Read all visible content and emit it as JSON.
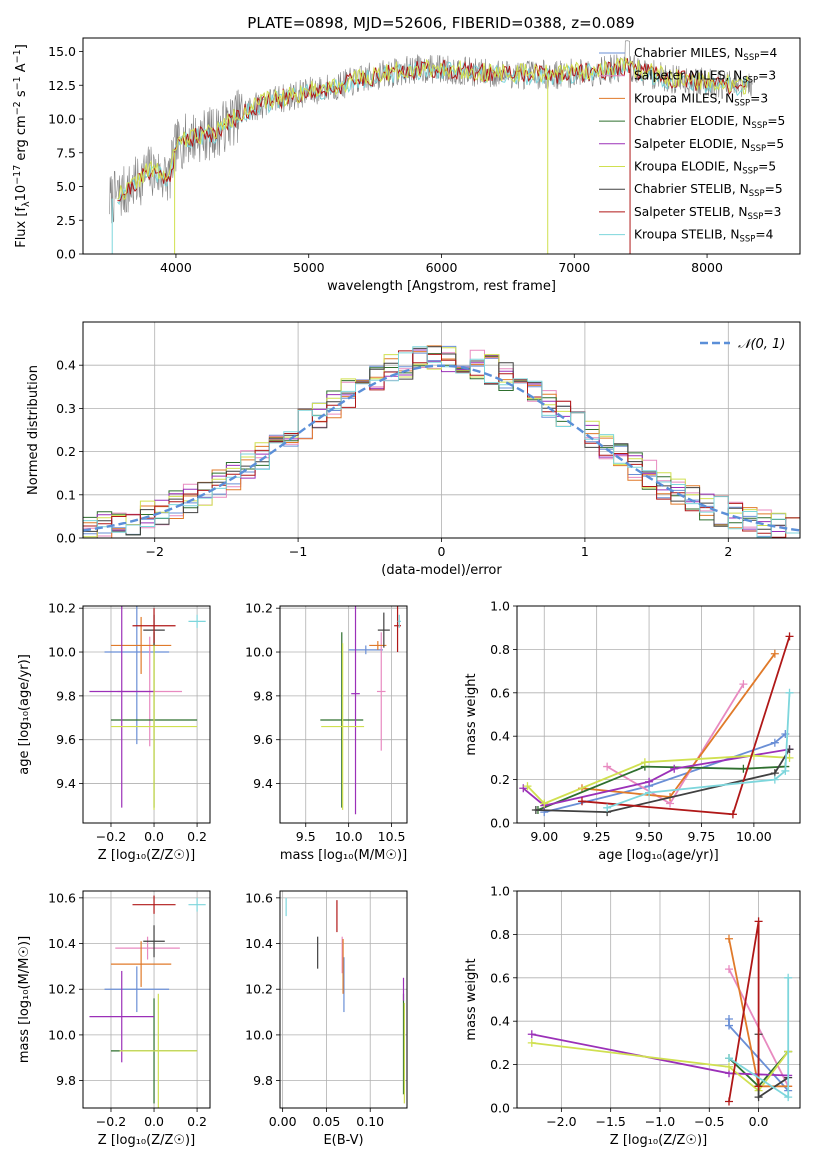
{
  "figure_title": "PLATE=0898, MJD=52606, FIBERID=0388, z=0.089",
  "colors": {
    "c_miles": "#6a8fd6",
    "s_miles": "#e88ac0",
    "k_miles": "#e07a2a",
    "c_elodie": "#2e6f2e",
    "s_elodie": "#9b30b8",
    "k_elodie": "#d0e050",
    "c_stelib": "#404040",
    "s_stelib": "#b01818",
    "k_stelib": "#7dd6dc",
    "gray": "#808080",
    "grid": "#b0b0b0",
    "normal_line": "#5b8fd8"
  },
  "legend_models": [
    {
      "label": "Chabrier MILES, N",
      "sub": "SSP",
      "suffix": "=4",
      "color": "#6a8fd6"
    },
    {
      "label": "Salpeter MILES, N",
      "sub": "SSP",
      "suffix": "=3",
      "color": "#e88ac0"
    },
    {
      "label": "Kroupa MILES, N",
      "sub": "SSP",
      "suffix": "=3",
      "color": "#e07a2a"
    },
    {
      "label": "Chabrier ELODIE, N",
      "sub": "SSP",
      "suffix": "=5",
      "color": "#2e6f2e"
    },
    {
      "label": "Salpeter ELODIE, N",
      "sub": "SSP",
      "suffix": "=5",
      "color": "#9b30b8"
    },
    {
      "label": "Kroupa ELODIE, N",
      "sub": "SSP",
      "suffix": "=5",
      "color": "#d0e050"
    },
    {
      "label": "Chabrier STELIB, N",
      "sub": "SSP",
      "suffix": "=5",
      "color": "#404040"
    },
    {
      "label": "Salpeter STELIB, N",
      "sub": "SSP",
      "suffix": "=3",
      "color": "#b01818"
    },
    {
      "label": "Kroupa STELIB, N",
      "sub": "SSP",
      "suffix": "=4",
      "color": "#7dd6dc"
    }
  ],
  "chart_data": [
    {
      "id": "spectrum",
      "type": "line",
      "xlabel": "wavelength [Angstrom, rest frame]",
      "ylabel_parts": [
        "Flux [f",
        "λ",
        "10",
        "−17",
        " erg cm",
        "−2",
        " s",
        "−1",
        " A",
        "−1",
        "]"
      ],
      "xlim": [
        3300,
        8700
      ],
      "ylim": [
        0,
        16
      ],
      "xticks": [
        4000,
        5000,
        6000,
        7000,
        8000
      ],
      "yticks": [
        0.0,
        2.5,
        5.0,
        7.5,
        10.0,
        12.5,
        15.0
      ],
      "yticklabels": [
        "0.0",
        "2.5",
        "5.0",
        "7.5",
        "10.0",
        "12.5",
        "15.0"
      ],
      "continuum": [
        [
          3500,
          4.0
        ],
        [
          3650,
          4.8
        ],
        [
          3800,
          6.2
        ],
        [
          3950,
          5.6
        ],
        [
          4000,
          8.0
        ],
        [
          4100,
          8.6
        ],
        [
          4300,
          9.0
        ],
        [
          4500,
          10.5
        ],
        [
          4700,
          11.3
        ],
        [
          5000,
          12.0
        ],
        [
          5200,
          12.4
        ],
        [
          5500,
          13.2
        ],
        [
          5800,
          13.7
        ],
        [
          6000,
          13.7
        ],
        [
          6300,
          13.4
        ],
        [
          6600,
          13.3
        ],
        [
          6900,
          13.3
        ],
        [
          7200,
          13.6
        ],
        [
          7400,
          13.8
        ],
        [
          7700,
          13.0
        ],
        [
          8100,
          12.6
        ],
        [
          8300,
          12.4
        ]
      ]
    },
    {
      "id": "residuals",
      "type": "histogram",
      "xlabel": "(data-model)/error",
      "ylabel": "Normed distribution",
      "xlim": [
        -2.5,
        2.5
      ],
      "ylim": [
        0,
        0.5
      ],
      "xticks": [
        -2,
        -1,
        0,
        1,
        2
      ],
      "xticklabels": [
        "−2",
        "−1",
        "0",
        "1",
        "2"
      ],
      "yticks": [
        0.0,
        0.1,
        0.2,
        0.3,
        0.4
      ],
      "yticklabels": [
        "0.0",
        "0.1",
        "0.2",
        "0.3",
        "0.4"
      ],
      "bin_width": 0.1,
      "legend": "𝒩(0, 1)",
      "normal": {
        "mean": 0,
        "sigma": 1
      }
    },
    {
      "id": "age_vs_Z",
      "type": "errorbar",
      "xlabel": "Z [log₁₀(Z/Z☉)]",
      "ylabel": "age  [log₁₀(age/yr)]",
      "xlim": [
        -0.33,
        0.26
      ],
      "ylim": [
        9.22,
        10.21
      ],
      "xticks": [
        -0.2,
        0.0,
        0.2
      ],
      "xticklabels": [
        "−0.2",
        "0.0",
        "0.2"
      ],
      "yticks": [
        9.4,
        9.6,
        9.8,
        10.0,
        10.2
      ],
      "yticklabels": [
        "9.4",
        "9.6",
        "9.8",
        "10.0",
        "10.2"
      ],
      "points": [
        {
          "key": "c_miles",
          "x": -0.08,
          "xerr": 0.15,
          "y": 10.0,
          "yerr": 0.42
        },
        {
          "key": "s_miles",
          "x": -0.02,
          "xerr": 0.15,
          "y": 9.82,
          "yerr": 0.25
        },
        {
          "key": "k_miles",
          "x": -0.06,
          "xerr": 0.14,
          "y": 10.03,
          "yerr": 0.13
        },
        {
          "key": "c_elodie",
          "x": 0.0,
          "xerr": 0.2,
          "y": 9.69,
          "yerr": 0.4
        },
        {
          "key": "s_elodie",
          "x": -0.15,
          "xerr": 0.15,
          "y": 9.82,
          "yerr": 0.53
        },
        {
          "key": "k_elodie",
          "x": 0.0,
          "xerr": 0.2,
          "y": 9.66,
          "yerr": 0.38
        },
        {
          "key": "c_stelib",
          "x": 0.0,
          "xerr": 0.05,
          "y": 10.1,
          "yerr": 0.07
        },
        {
          "key": "s_stelib",
          "x": 0.0,
          "xerr": 0.1,
          "y": 10.12,
          "yerr": 0.08
        },
        {
          "key": "k_stelib",
          "x": 0.2,
          "xerr": 0.04,
          "y": 10.14,
          "yerr": 0.03
        }
      ]
    },
    {
      "id": "age_vs_mass",
      "type": "errorbar",
      "xlabel": "mass [log₁₀(M/M☉)]",
      "ylabel": "",
      "xlim": [
        9.2,
        10.68
      ],
      "ylim": [
        9.22,
        10.21
      ],
      "xticks": [
        9.5,
        10.0,
        10.5
      ],
      "xticklabels": [
        "9.5",
        "10.0",
        "10.5"
      ],
      "yticks": [
        9.4,
        9.6,
        9.8,
        10.0,
        10.2
      ],
      "yticklabels": [
        "9.4",
        "9.6",
        "9.8",
        "10.0",
        "10.2"
      ],
      "points": [
        {
          "key": "c_miles",
          "x": 10.2,
          "xerr": 0.2,
          "y": 10.01,
          "yerr": 0.02
        },
        {
          "key": "s_miles",
          "x": 10.38,
          "xerr": 0.05,
          "y": 9.82,
          "yerr": 0.27
        },
        {
          "key": "k_miles",
          "x": 10.34,
          "xerr": 0.1,
          "y": 10.03,
          "yerr": 0.02
        },
        {
          "key": "c_elodie",
          "x": 9.92,
          "xerr": 0.25,
          "y": 9.69,
          "yerr": 0.4
        },
        {
          "key": "s_elodie",
          "x": 10.08,
          "xerr": 0.05,
          "y": 9.81,
          "yerr": 0.55
        },
        {
          "key": "k_elodie",
          "x": 9.93,
          "xerr": 0.25,
          "y": 9.66,
          "yerr": 0.38
        },
        {
          "key": "c_stelib",
          "x": 10.41,
          "xerr": 0.07,
          "y": 10.1,
          "yerr": 0.08
        },
        {
          "key": "s_stelib",
          "x": 10.57,
          "xerr": 0.04,
          "y": 10.12,
          "yerr": 0.12
        },
        {
          "key": "k_stelib",
          "x": 10.59,
          "xerr": 0.02,
          "y": 10.14,
          "yerr": 0.03
        }
      ]
    },
    {
      "id": "massweight_vs_age",
      "type": "line",
      "xlabel": "age  [log₁₀(age/yr)]",
      "ylabel": "mass weight",
      "xlim": [
        8.87,
        10.22
      ],
      "ylim": [
        0,
        1
      ],
      "xticks": [
        9.0,
        9.25,
        9.5,
        9.75,
        10.0
      ],
      "xticklabels": [
        "9.00",
        "9.25",
        "9.50",
        "9.75",
        "10.00"
      ],
      "yticks": [
        0.0,
        0.2,
        0.4,
        0.6,
        0.8,
        1.0
      ],
      "yticklabels": [
        "0.0",
        "0.2",
        "0.4",
        "0.6",
        "0.8",
        "1.0"
      ],
      "series": [
        {
          "key": "c_miles",
          "x": [
            9.0,
            9.5,
            10.1,
            10.15
          ],
          "y": [
            0.05,
            0.17,
            0.37,
            0.41
          ]
        },
        {
          "key": "s_miles",
          "x": [
            9.3,
            9.6,
            9.95
          ],
          "y": [
            0.26,
            0.09,
            0.64
          ]
        },
        {
          "key": "k_miles",
          "x": [
            9.18,
            9.6,
            10.1
          ],
          "y": [
            0.16,
            0.12,
            0.78
          ]
        },
        {
          "key": "c_elodie",
          "x": [
            8.97,
            9.48,
            9.95,
            10.15
          ],
          "y": [
            0.06,
            0.26,
            0.25,
            0.26
          ]
        },
        {
          "key": "s_elodie",
          "x": [
            8.9,
            9.0,
            9.5,
            9.62,
            10.17
          ],
          "y": [
            0.16,
            0.08,
            0.19,
            0.25,
            0.34
          ]
        },
        {
          "key": "k_elodie",
          "x": [
            8.92,
            9.0,
            9.48,
            10.0,
            10.17
          ],
          "y": [
            0.17,
            0.09,
            0.28,
            0.31,
            0.3
          ]
        },
        {
          "key": "c_stelib",
          "x": [
            8.96,
            9.3,
            10.1,
            10.17
          ],
          "y": [
            0.06,
            0.05,
            0.23,
            0.34
          ]
        },
        {
          "key": "s_stelib",
          "x": [
            9.18,
            9.9,
            10.17
          ],
          "y": [
            0.1,
            0.04,
            0.86
          ]
        },
        {
          "key": "k_stelib",
          "x": [
            9.3,
            9.5,
            10.1,
            10.15,
            10.17
          ],
          "y": [
            0.07,
            0.14,
            0.2,
            0.24,
            0.6
          ]
        }
      ]
    },
    {
      "id": "mass_vs_Z",
      "type": "errorbar",
      "xlabel": "Z [log₁₀(Z/Z☉)]",
      "ylabel": "mass [log₁₀(M/M☉)]",
      "xlim": [
        -0.33,
        0.26
      ],
      "ylim": [
        9.68,
        10.63
      ],
      "xticks": [
        -0.2,
        0.0,
        0.2
      ],
      "xticklabels": [
        "−0.2",
        "0.0",
        "0.2"
      ],
      "yticks": [
        9.8,
        10.0,
        10.2,
        10.4,
        10.6
      ],
      "yticklabels": [
        "9.8",
        "10.0",
        "10.2",
        "10.4",
        "10.6"
      ],
      "points": [
        {
          "key": "c_miles",
          "x": -0.08,
          "xerr": 0.15,
          "y": 10.2,
          "yerr": 0.1
        },
        {
          "key": "s_miles",
          "x": -0.03,
          "xerr": 0.15,
          "y": 10.38,
          "yerr": 0.05
        },
        {
          "key": "k_miles",
          "x": -0.06,
          "xerr": 0.14,
          "y": 10.31,
          "yerr": 0.1
        },
        {
          "key": "c_elodie",
          "x": 0.0,
          "xerr": 0.2,
          "y": 9.93,
          "yerr": 0.23
        },
        {
          "key": "s_elodie",
          "x": -0.15,
          "xerr": 0.15,
          "y": 10.08,
          "yerr": 0.2
        },
        {
          "key": "k_elodie",
          "x": 0.02,
          "xerr": 0.18,
          "y": 9.93,
          "yerr": 0.25
        },
        {
          "key": "c_stelib",
          "x": 0.0,
          "xerr": 0.05,
          "y": 10.41,
          "yerr": 0.07
        },
        {
          "key": "s_stelib",
          "x": 0.0,
          "xerr": 0.1,
          "y": 10.57,
          "yerr": 0.04
        },
        {
          "key": "k_stelib",
          "x": 0.2,
          "xerr": 0.04,
          "y": 10.57,
          "yerr": 0.03
        }
      ]
    },
    {
      "id": "mass_vs_ebv",
      "type": "errorbar",
      "xlabel": "E(B-V)",
      "ylabel": "",
      "xlim": [
        -0.003,
        0.142
      ],
      "ylim": [
        9.68,
        10.63
      ],
      "xticks": [
        0.0,
        0.05,
        0.1
      ],
      "xticklabels": [
        "0.00",
        "0.05",
        "0.10"
      ],
      "yticks": [
        9.8,
        10.0,
        10.2,
        10.4,
        10.6
      ],
      "yticklabels": [
        "9.8",
        "10.0",
        "10.2",
        "10.4",
        "10.6"
      ],
      "points": [
        {
          "key": "c_miles",
          "x": 0.07,
          "xerr": 0,
          "y": 10.22,
          "yerr": 0.12
        },
        {
          "key": "s_miles",
          "x": 0.068,
          "xerr": 0,
          "y": 10.35,
          "yerr": 0.08
        },
        {
          "key": "k_miles",
          "x": 0.069,
          "xerr": 0,
          "y": 10.3,
          "yerr": 0.12
        },
        {
          "key": "c_elodie",
          "x": 0.138,
          "xerr": 0,
          "y": 9.96,
          "yerr": 0.22
        },
        {
          "key": "s_elodie",
          "x": 0.138,
          "xerr": 0,
          "y": 10.2,
          "yerr": 0.05
        },
        {
          "key": "k_elodie",
          "x": 0.139,
          "xerr": 0,
          "y": 9.92,
          "yerr": 0.22
        },
        {
          "key": "c_stelib",
          "x": 0.04,
          "xerr": 0,
          "y": 10.36,
          "yerr": 0.07
        },
        {
          "key": "s_stelib",
          "x": 0.062,
          "xerr": 0,
          "y": 10.52,
          "yerr": 0.07
        },
        {
          "key": "k_stelib",
          "x": 0.004,
          "xerr": 0,
          "y": 10.56,
          "yerr": 0.04
        }
      ]
    },
    {
      "id": "massweight_vs_Z",
      "type": "line",
      "xlabel": "Z [log₁₀(Z/Z☉)]",
      "ylabel": "mass weight",
      "xlim": [
        -2.45,
        0.42
      ],
      "ylim": [
        0,
        1
      ],
      "xticks": [
        -2.0,
        -1.5,
        -1.0,
        -0.5,
        0.0
      ],
      "xticklabels": [
        "−2.0",
        "−1.5",
        "−1.0",
        "−0.5",
        "0.0"
      ],
      "yticks": [
        0.0,
        0.2,
        0.4,
        0.6,
        0.8,
        1.0
      ],
      "yticklabels": [
        "0.0",
        "0.2",
        "0.4",
        "0.6",
        "0.8",
        "1.0"
      ],
      "series": [
        {
          "key": "c_miles",
          "x": [
            -0.3,
            -0.3,
            0.3
          ],
          "y": [
            0.41,
            0.38,
            0.08
          ]
        },
        {
          "key": "s_miles",
          "x": [
            -0.3,
            0.3
          ],
          "y": [
            0.64,
            0.1
          ]
        },
        {
          "key": "k_miles",
          "x": [
            -0.3,
            0.0,
            0.3
          ],
          "y": [
            0.78,
            0.1,
            0.1
          ]
        },
        {
          "key": "c_elodie",
          "x": [
            -0.3,
            0.0,
            0.3
          ],
          "y": [
            0.23,
            0.1,
            0.26
          ]
        },
        {
          "key": "s_elodie",
          "x": [
            -2.3,
            -0.3,
            0.3
          ],
          "y": [
            0.34,
            0.16,
            0.15
          ]
        },
        {
          "key": "k_elodie",
          "x": [
            -2.3,
            -0.3,
            0.0,
            0.3
          ],
          "y": [
            0.3,
            0.19,
            0.08,
            0.26
          ]
        },
        {
          "key": "c_stelib",
          "x": [
            0.0,
            0.0,
            0.3
          ],
          "y": [
            0.34,
            0.05,
            0.14
          ]
        },
        {
          "key": "s_stelib",
          "x": [
            -0.3,
            0.0,
            0.0
          ],
          "y": [
            0.03,
            0.86,
            0.1
          ]
        },
        {
          "key": "k_stelib",
          "x": [
            -0.3,
            0.3,
            0.3
          ],
          "y": [
            0.23,
            0.05,
            0.6
          ]
        }
      ]
    }
  ]
}
